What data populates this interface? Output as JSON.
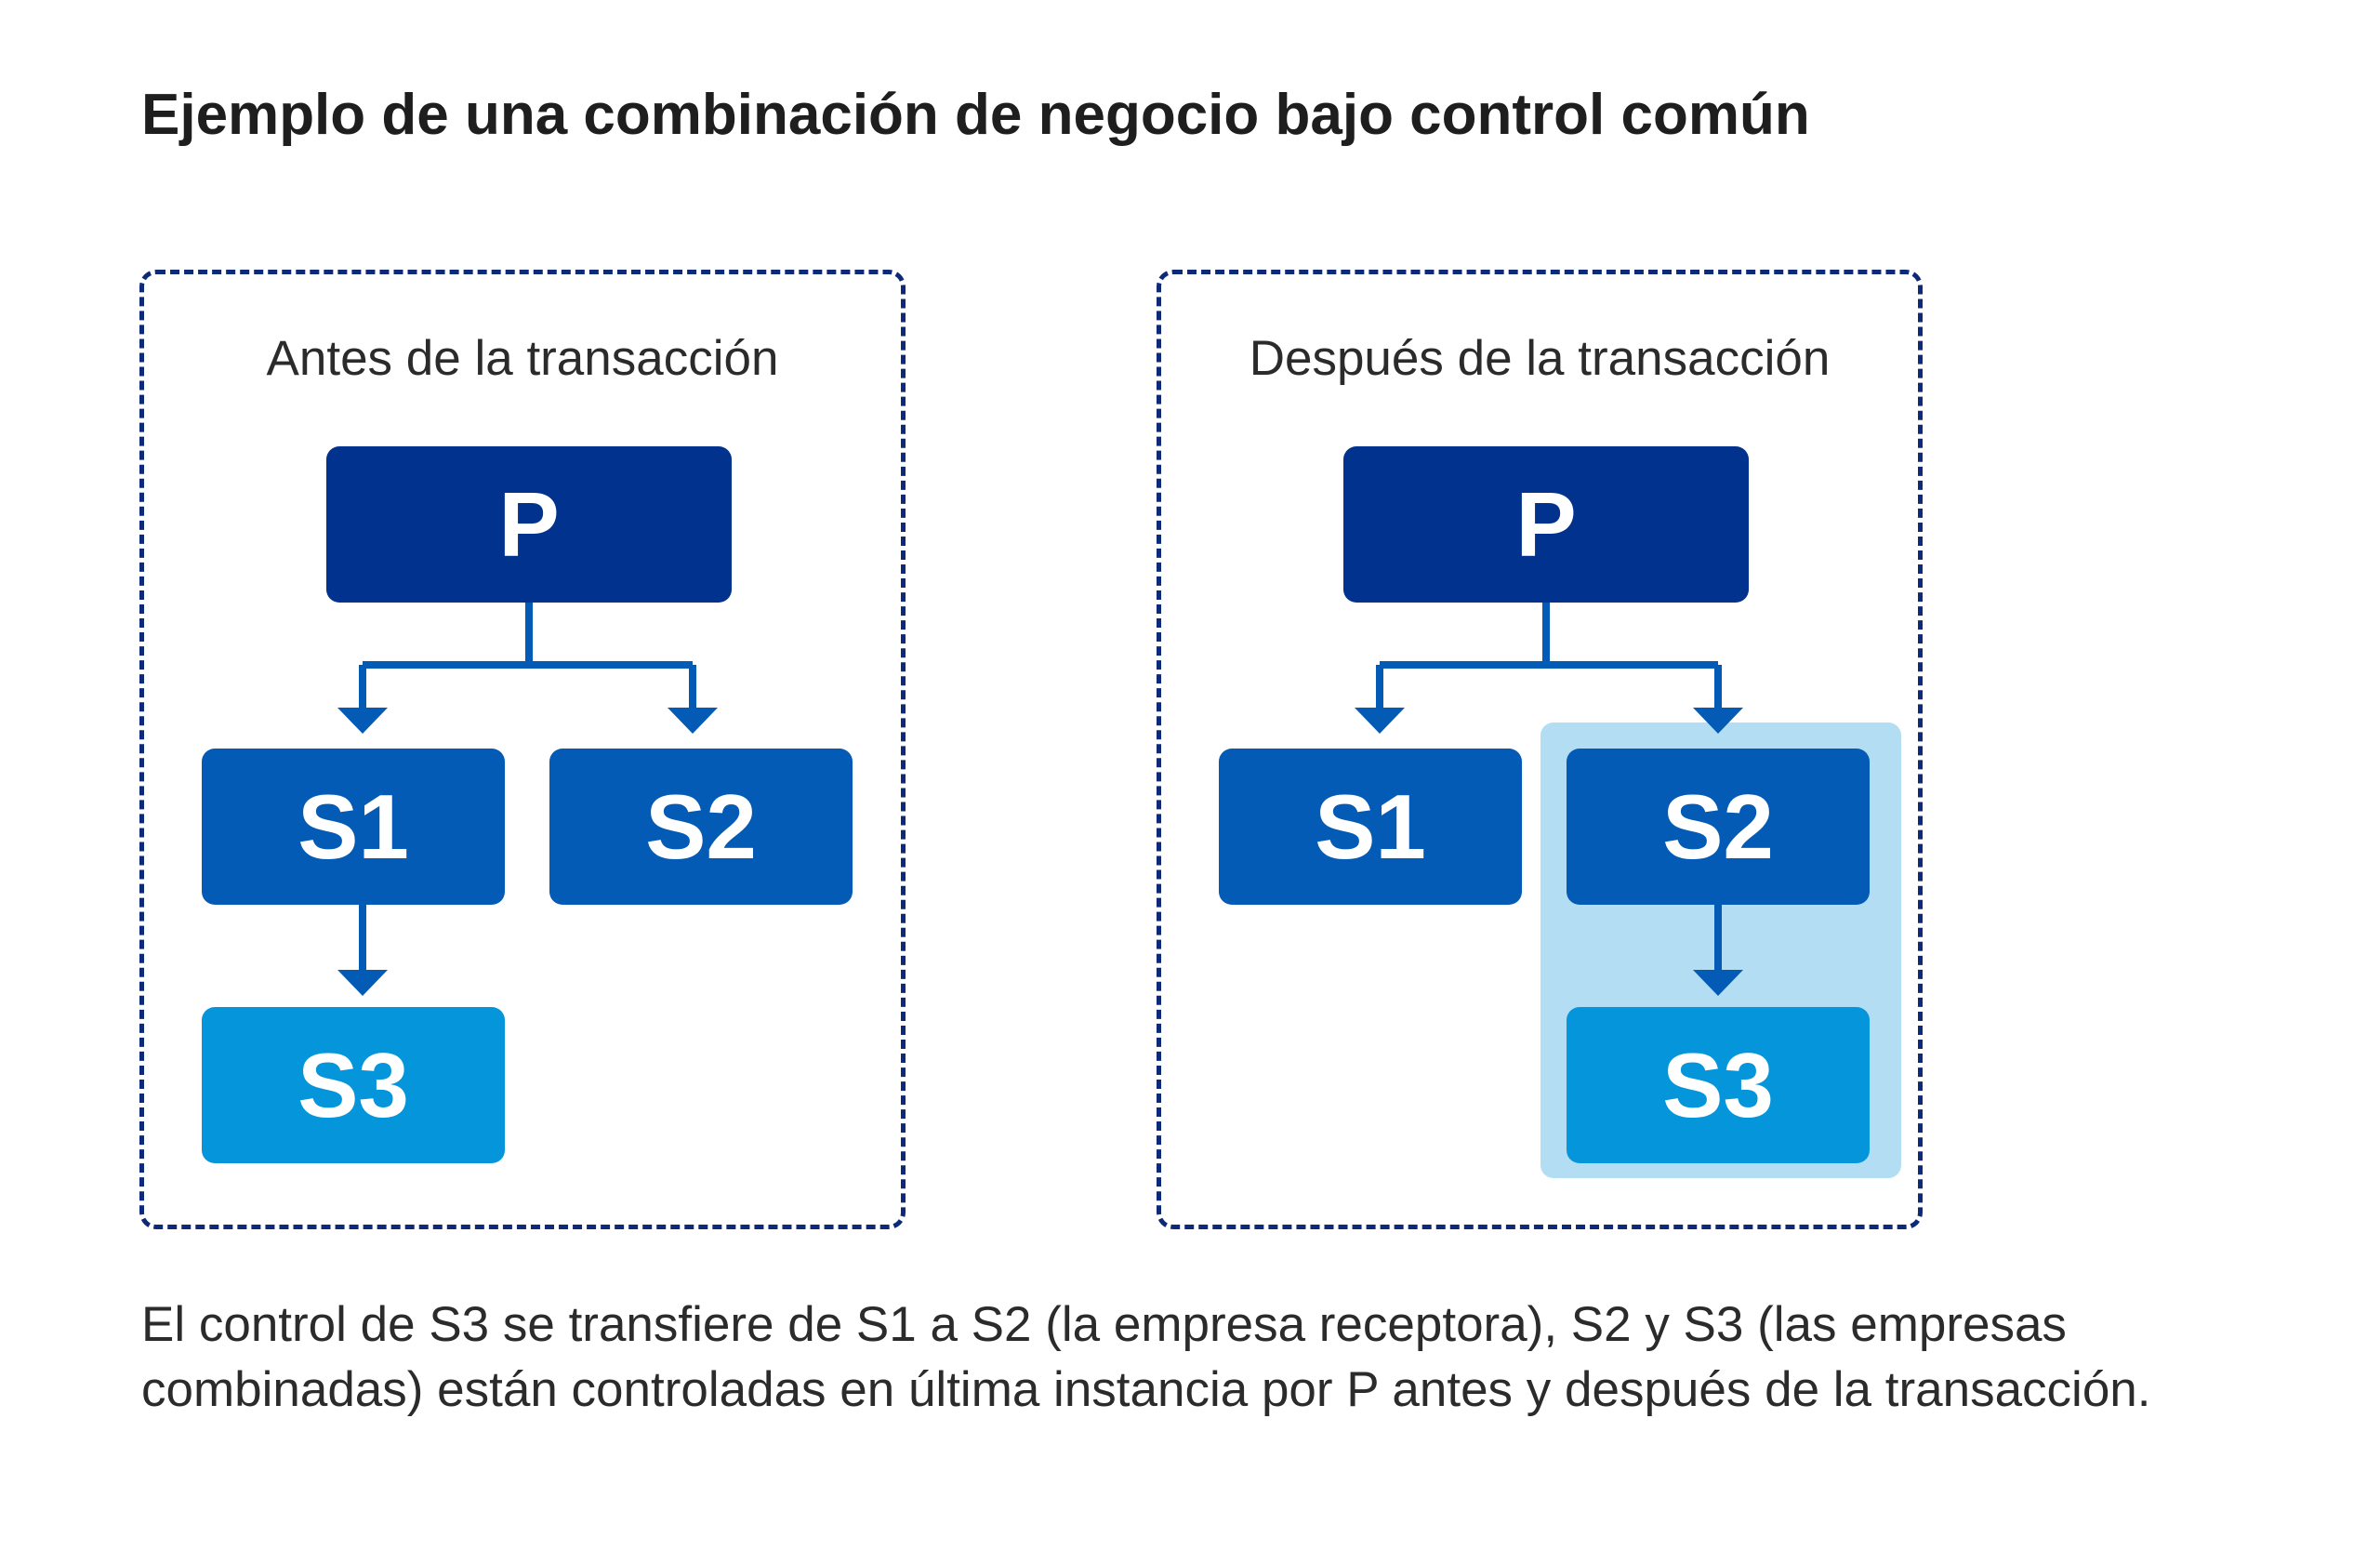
{
  "title": "Ejemplo de una combinación de negocio bajo control común",
  "colors": {
    "border": "#0d2a78",
    "node_parent": "#01328d",
    "node_subsidiary": "#045bb5",
    "node_s3": "#0595db",
    "highlight": "#b2ddf2",
    "connector": "#045bb5"
  },
  "before": {
    "heading": "Antes de la transacción",
    "nodes": {
      "p": "P",
      "s1": "S1",
      "s2": "S2",
      "s3": "S3"
    }
  },
  "after": {
    "heading": "Después de la transacción",
    "nodes": {
      "p": "P",
      "s1": "S1",
      "s2": "S2",
      "s3": "S3"
    }
  },
  "caption": "El control de S3 se transfiere de S1 a S2 (la empresa receptora), S2 y S3 (las empresas combinadas) están controladas en última instancia por P antes y después de la transacción."
}
